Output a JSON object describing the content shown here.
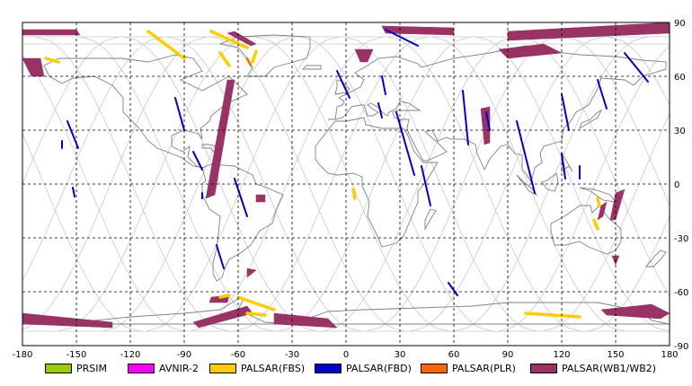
{
  "map": {
    "x_ticks": [
      "-180",
      "-150",
      "-120",
      "-90",
      "-60",
      "-30",
      "0",
      "30",
      "60",
      "90",
      "120",
      "150",
      "180"
    ],
    "y_ticks": [
      "90",
      "60",
      "30",
      "0",
      "-30",
      "-60",
      "-90"
    ],
    "xlim": [
      -180,
      180
    ],
    "ylim": [
      -90,
      90
    ],
    "grid": "dashed",
    "colors": {
      "frame": "#000000",
      "coast": "#808080",
      "orbit": "#c8c8c8",
      "grid": "#000000"
    }
  },
  "legend": [
    {
      "label": "PRSIM",
      "color": "#99cc00"
    },
    {
      "label": "AVNIR-2",
      "color": "#ff00ff"
    },
    {
      "label": "PALSAR(FBS)",
      "color": "#ffcc00"
    },
    {
      "label": "PALSAR(FBD)",
      "color": "#0000cc"
    },
    {
      "label": "PALSAR(PLR)",
      "color": "#ff6600"
    },
    {
      "label": "PALSAR(WB1/WB2)",
      "color": "#993366"
    }
  ],
  "swaths": {
    "fbd": [
      [
        [
          -155,
          35
        ],
        [
          -149,
          20
        ]
      ],
      [
        [
          -152,
          -2
        ],
        [
          -151,
          -7
        ]
      ],
      [
        [
          -158,
          24
        ],
        [
          -158,
          20
        ]
      ],
      [
        [
          -95,
          48
        ],
        [
          -90,
          30
        ]
      ],
      [
        [
          -85,
          18
        ],
        [
          -80,
          8
        ]
      ],
      [
        [
          -80,
          -5
        ],
        [
          -80,
          -8
        ]
      ],
      [
        [
          -62,
          3
        ],
        [
          -55,
          -18
        ]
      ],
      [
        [
          -72,
          -34
        ],
        [
          -68,
          -47
        ]
      ],
      [
        [
          -5,
          63
        ],
        [
          2,
          48
        ]
      ],
      [
        [
          20,
          60
        ],
        [
          22,
          50
        ]
      ],
      [
        [
          18,
          45
        ],
        [
          20,
          37
        ]
      ],
      [
        [
          28,
          40
        ],
        [
          38,
          5
        ]
      ],
      [
        [
          42,
          10
        ],
        [
          47,
          -12
        ]
      ],
      [
        [
          65,
          52
        ],
        [
          68,
          22
        ]
      ],
      [
        [
          78,
          40
        ],
        [
          80,
          30
        ]
      ],
      [
        [
          95,
          35
        ],
        [
          105,
          -5
        ]
      ],
      [
        [
          120,
          50
        ],
        [
          124,
          30
        ]
      ],
      [
        [
          120,
          17
        ],
        [
          122,
          3
        ]
      ],
      [
        [
          130,
          10
        ],
        [
          130,
          3
        ]
      ],
      [
        [
          140,
          58
        ],
        [
          145,
          42
        ]
      ],
      [
        [
          155,
          73
        ],
        [
          168,
          57
        ]
      ],
      [
        [
          57,
          -55
        ],
        [
          62,
          -62
        ]
      ],
      [
        [
          22,
          86
        ],
        [
          40,
          77
        ]
      ]
    ],
    "fbs": [
      [
        [
          -110,
          85
        ],
        [
          -90,
          70
        ]
      ],
      [
        [
          -75,
          85
        ],
        [
          -55,
          76
        ]
      ],
      [
        [
          -70,
          73
        ],
        [
          -65,
          66
        ]
      ],
      [
        [
          -50,
          74
        ],
        [
          -52,
          68
        ]
      ],
      [
        [
          -60,
          -63
        ],
        [
          -40,
          -70
        ]
      ],
      [
        [
          -55,
          -72
        ],
        [
          -45,
          -73
        ]
      ],
      [
        [
          -70,
          -63
        ],
        [
          -65,
          -62
        ]
      ],
      [
        [
          100,
          -72
        ],
        [
          130,
          -74
        ]
      ],
      [
        [
          -167,
          70
        ],
        [
          -160,
          68
        ]
      ],
      [
        [
          4,
          -3
        ],
        [
          5,
          -8
        ]
      ],
      [
        [
          138,
          -20
        ],
        [
          140,
          -25
        ]
      ],
      [
        [
          140,
          -8
        ],
        [
          141,
          -12
        ]
      ]
    ],
    "plr": [
      [
        [
          -55,
          70
        ],
        [
          -53,
          66
        ]
      ]
    ],
    "wb": [
      [
        [
          -180,
          86
        ],
        [
          -150,
          86
        ],
        [
          -148,
          83
        ],
        [
          -180,
          83
        ]
      ],
      [
        [
          -180,
          70
        ],
        [
          -170,
          70
        ],
        [
          -168,
          60
        ],
        [
          -175,
          60
        ]
      ],
      [
        [
          -62,
          85
        ],
        [
          -50,
          78
        ],
        [
          -53,
          77
        ],
        [
          -66,
          84
        ]
      ],
      [
        [
          -40,
          -72
        ],
        [
          -10,
          -75
        ],
        [
          -5,
          -80
        ],
        [
          -40,
          -78
        ]
      ],
      [
        [
          -180,
          -72
        ],
        [
          -130,
          -77
        ],
        [
          -130,
          -80
        ],
        [
          -180,
          -78
        ]
      ],
      [
        [
          -82,
          -80
        ],
        [
          -52,
          -72
        ],
        [
          -55,
          -68
        ],
        [
          -85,
          -77
        ]
      ],
      [
        [
          -75,
          -63
        ],
        [
          -65,
          -62
        ],
        [
          -66,
          -66
        ],
        [
          -76,
          -66
        ]
      ],
      [
        [
          -78,
          -8
        ],
        [
          -73,
          -6
        ],
        [
          -62,
          58
        ],
        [
          -66,
          58
        ]
      ],
      [
        [
          -50,
          -6
        ],
        [
          -45,
          -6
        ],
        [
          -45,
          -10
        ],
        [
          -50,
          -10
        ]
      ],
      [
        [
          5,
          75
        ],
        [
          15,
          75
        ],
        [
          12,
          68
        ],
        [
          8,
          68
        ]
      ],
      [
        [
          20,
          88
        ],
        [
          60,
          87
        ],
        [
          60,
          83
        ],
        [
          22,
          84
        ]
      ],
      [
        [
          75,
          42
        ],
        [
          80,
          43
        ],
        [
          80,
          23
        ],
        [
          77,
          22
        ]
      ],
      [
        [
          85,
          75
        ],
        [
          110,
          78
        ],
        [
          120,
          73
        ],
        [
          90,
          70
        ]
      ],
      [
        [
          90,
          85
        ],
        [
          180,
          90
        ],
        [
          180,
          84
        ],
        [
          90,
          80
        ]
      ],
      [
        [
          140,
          -20
        ],
        [
          143,
          -18
        ],
        [
          145,
          -10
        ],
        [
          142,
          -12
        ]
      ],
      [
        [
          150,
          -5
        ],
        [
          155,
          -3
        ],
        [
          150,
          -20
        ],
        [
          147,
          -20
        ]
      ],
      [
        [
          142,
          -70
        ],
        [
          170,
          -67
        ],
        [
          180,
          -72
        ],
        [
          175,
          -75
        ],
        [
          145,
          -73
        ]
      ],
      [
        [
          148,
          -40
        ],
        [
          152,
          -40
        ],
        [
          150,
          -45
        ]
      ],
      [
        [
          -55,
          -47
        ],
        [
          -50,
          -48
        ],
        [
          -55,
          -52
        ]
      ]
    ]
  }
}
